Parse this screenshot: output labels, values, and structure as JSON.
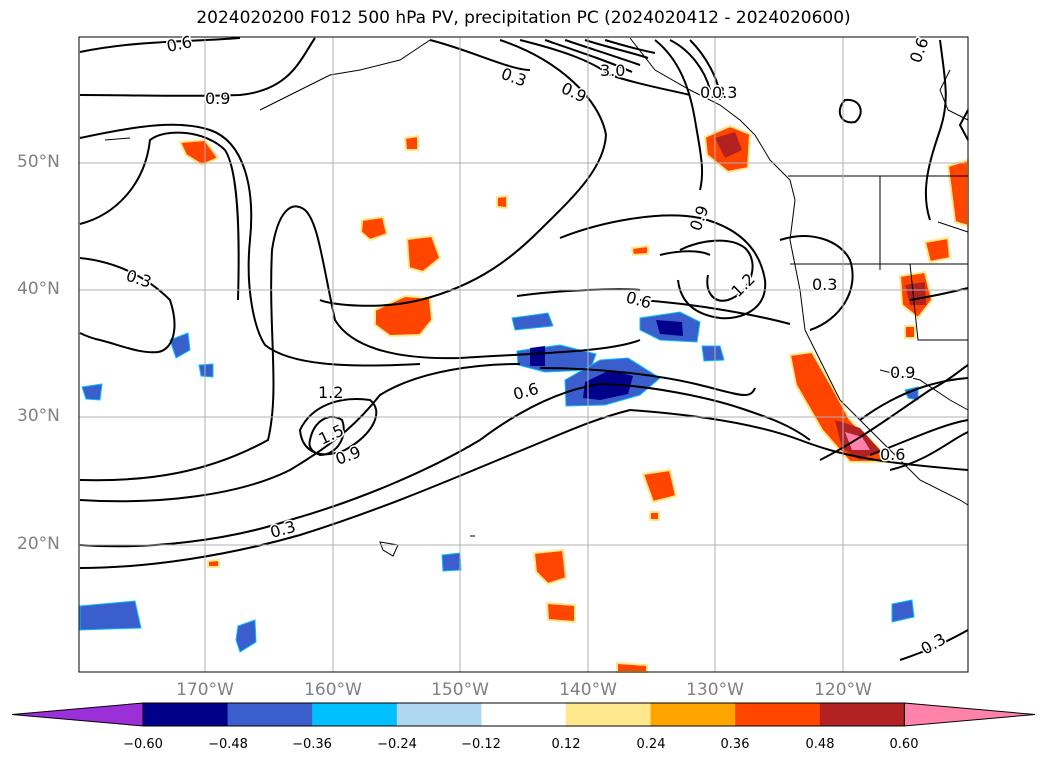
{
  "title": "2024020200 F012 500 hPa PV, precipitation PC (2024020412 - 2024020600)",
  "latitude_labels": [
    "50°N",
    "40°N",
    "30°N",
    "20°N"
  ],
  "longitude_labels": [
    "170°W",
    "160°W",
    "150°W",
    "140°W",
    "130°W",
    "120°W"
  ],
  "pv_contour_labels": [
    "0.6",
    "0.9",
    "0.3",
    "0.3",
    "0.9",
    "3.0",
    "0.3",
    "0.9",
    "1.2",
    "0.3",
    "0.6",
    "0.3",
    "1.2",
    "1.5",
    "0.9",
    "0.6",
    "0.3",
    "0.9",
    "0.6",
    "0.6",
    "0.3"
  ],
  "colorbar": {
    "ticks": [
      "−0.60",
      "−0.48",
      "−0.36",
      "−0.24",
      "−0.12",
      "0.12",
      "0.24",
      "0.36",
      "0.48",
      "0.60"
    ],
    "colors": [
      "#9b30d9",
      "#00008b",
      "#3a5fcd",
      "#00bfff",
      "#add8f0",
      "#ffffff",
      "#ffe88c",
      "#ffa500",
      "#ff4500",
      "#b22222",
      "#ff82ab"
    ]
  },
  "colors": {
    "contour": "#000000",
    "grid": "#b0b0b0",
    "tick_label": "#808080"
  }
}
